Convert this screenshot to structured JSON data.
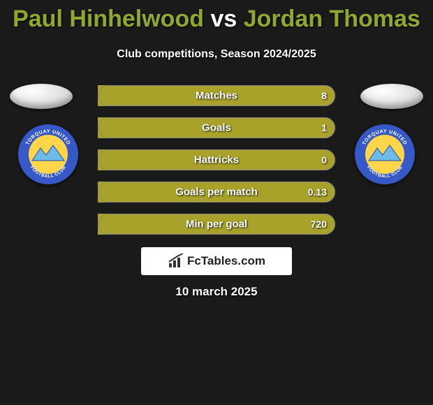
{
  "title": {
    "player1": "Paul Hinhelwood",
    "vs": "vs",
    "player2": "Jordan Thomas",
    "color_player": "#8fa832",
    "color_vs": "#ffffff",
    "fontsize": 34
  },
  "subtitle": "Club competitions, Season 2024/2025",
  "date": "10 march 2025",
  "branding": {
    "text": "FcTables.com"
  },
  "club_badge": {
    "outer_color": "#3659c7",
    "inner_color": "#ffd54a",
    "mountain_color": "#6fbbe8",
    "text_top": "TORQUAY UNITED",
    "text_bottom": "FOOTBALL CLUB"
  },
  "stats": {
    "bar_color": "#a8a22a",
    "background": "#1a1a1a",
    "rows": [
      {
        "label": "Matches",
        "left_value": "",
        "right_value": "8",
        "left_pct": 0,
        "right_pct": 100
      },
      {
        "label": "Goals",
        "left_value": "",
        "right_value": "1",
        "left_pct": 0,
        "right_pct": 100
      },
      {
        "label": "Hattricks",
        "left_value": "",
        "right_value": "0",
        "left_pct": 0,
        "right_pct": 100
      },
      {
        "label": "Goals per match",
        "left_value": "",
        "right_value": "0.13",
        "left_pct": 0,
        "right_pct": 100
      },
      {
        "label": "Min per goal",
        "left_value": "",
        "right_value": "720",
        "left_pct": 0,
        "right_pct": 100
      }
    ]
  }
}
